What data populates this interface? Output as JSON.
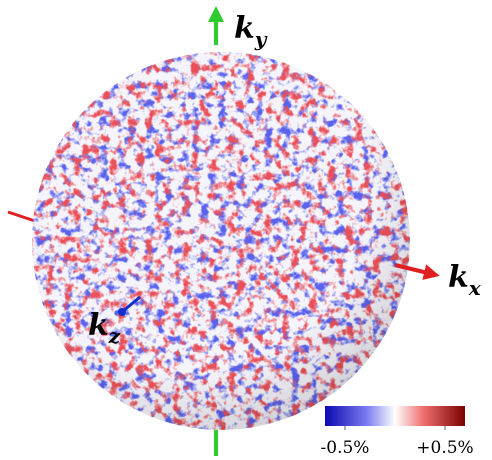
{
  "axes": {
    "y": {
      "symbol": "k",
      "subscript": "y"
    },
    "x": {
      "symbol": "k",
      "subscript": "x"
    },
    "z": {
      "symbol": "k",
      "subscript": "z"
    }
  },
  "colorbar": {
    "ticks": [
      {
        "value": -0.5,
        "label": "-0.5%"
      },
      {
        "value": 0.5,
        "label": "+0.5%"
      }
    ]
  }
}
